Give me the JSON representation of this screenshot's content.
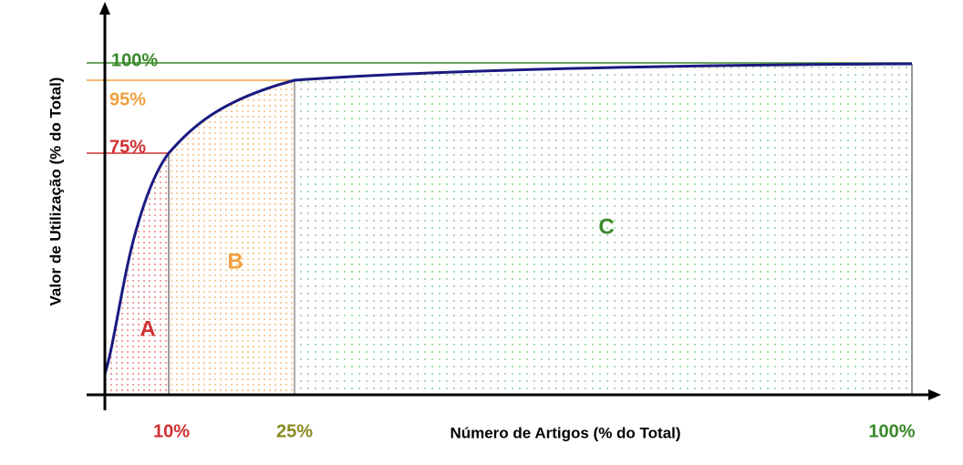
{
  "y_axis_label": "Valor de Utilização (% do Total)",
  "x_axis_label": "Número de Artigos (% do Total)",
  "y_labels": [
    "100%",
    "95%",
    "75%"
  ],
  "x_labels": [
    "10%",
    "25%",
    "100%"
  ],
  "zones": [
    "A",
    "B",
    "C"
  ]
}
